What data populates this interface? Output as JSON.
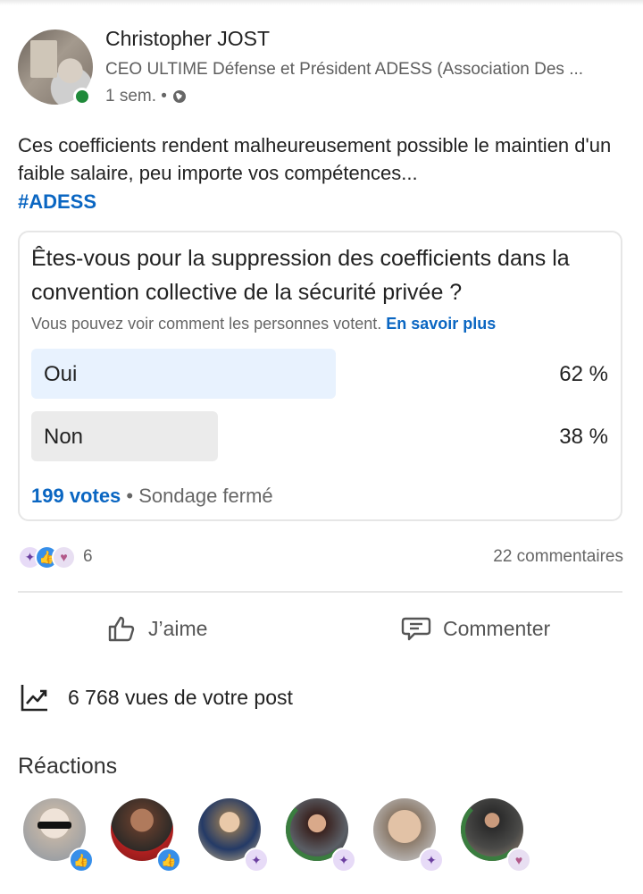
{
  "post": {
    "author_name": "Christopher JOST",
    "author_title": "CEO ULTIME Défense et Président ADESS (Association Des ...",
    "time": "1 sem. •",
    "text": "Ces coefficients rendent malheureusement possible le maintien d'un faible salaire, peu importe vos compétences...",
    "hashtag": "#ADESS"
  },
  "poll": {
    "question": "Êtes-vous pour la suppression des coefficients dans la convention collective de la sécurité privée ?",
    "note": "Vous pouvez voir comment les personnes votent.",
    "learn_more": "En savoir plus",
    "options": [
      {
        "label": "Oui",
        "percent": "62 %",
        "share": 0.62
      },
      {
        "label": "Non",
        "percent": "38 %",
        "share": 0.38
      }
    ],
    "votes": "199 votes",
    "status": "• Sondage fermé"
  },
  "social": {
    "reaction_count": "6",
    "comments": "22 commentaires"
  },
  "actions": {
    "like": "J’aime",
    "comment": "Commenter"
  },
  "views": "6 768 vues de votre post",
  "reactions_title": "Réactions",
  "reactors": [
    {
      "reaction": "like"
    },
    {
      "reaction": "like"
    },
    {
      "reaction": "insightful"
    },
    {
      "reaction": "insightful",
      "open_to_work": true
    },
    {
      "reaction": "insightful"
    },
    {
      "reaction": "support",
      "open_to_work": true
    }
  ],
  "colors": {
    "accent": "#0a66c2",
    "online": "#1f8a3a",
    "poll_winner_fill": "#e8f2fe",
    "poll_other_fill": "#ebebeb"
  }
}
